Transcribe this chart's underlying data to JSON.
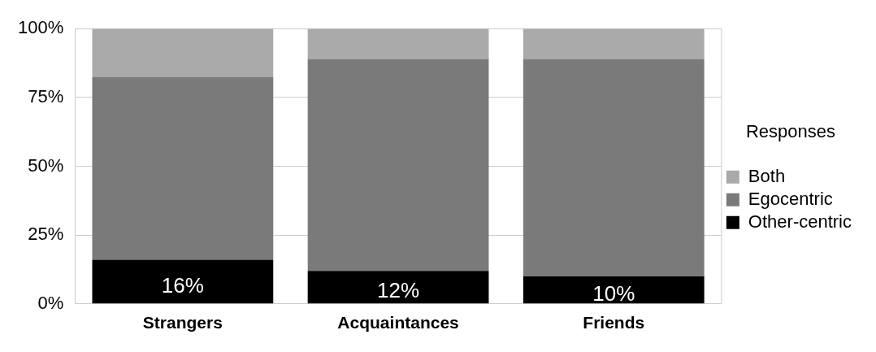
{
  "chart_data": {
    "type": "bar",
    "stacked": true,
    "legend_title": "Responses",
    "legend": "right",
    "grid": "y",
    "categories": [
      "Strangers",
      "Acquaintances",
      "Friends"
    ],
    "series": [
      {
        "name": "Other-centric",
        "color": "#000000",
        "values": [
          16,
          12,
          10
        ],
        "value_labels": [
          "16%",
          "12%",
          "10%"
        ]
      },
      {
        "name": "Egocentric",
        "color": "#7a7a7a",
        "values": [
          66.5,
          77,
          79
        ]
      },
      {
        "name": "Both",
        "color": "#aaaaaa",
        "values": [
          17.5,
          11,
          11
        ]
      }
    ],
    "ylim": [
      0,
      100
    ],
    "yticks": [
      {
        "value": 0,
        "label": "0%"
      },
      {
        "value": 25,
        "label": "25%"
      },
      {
        "value": 50,
        "label": "50%"
      },
      {
        "value": 75,
        "label": "75%"
      },
      {
        "value": 100,
        "label": "100%"
      }
    ]
  }
}
